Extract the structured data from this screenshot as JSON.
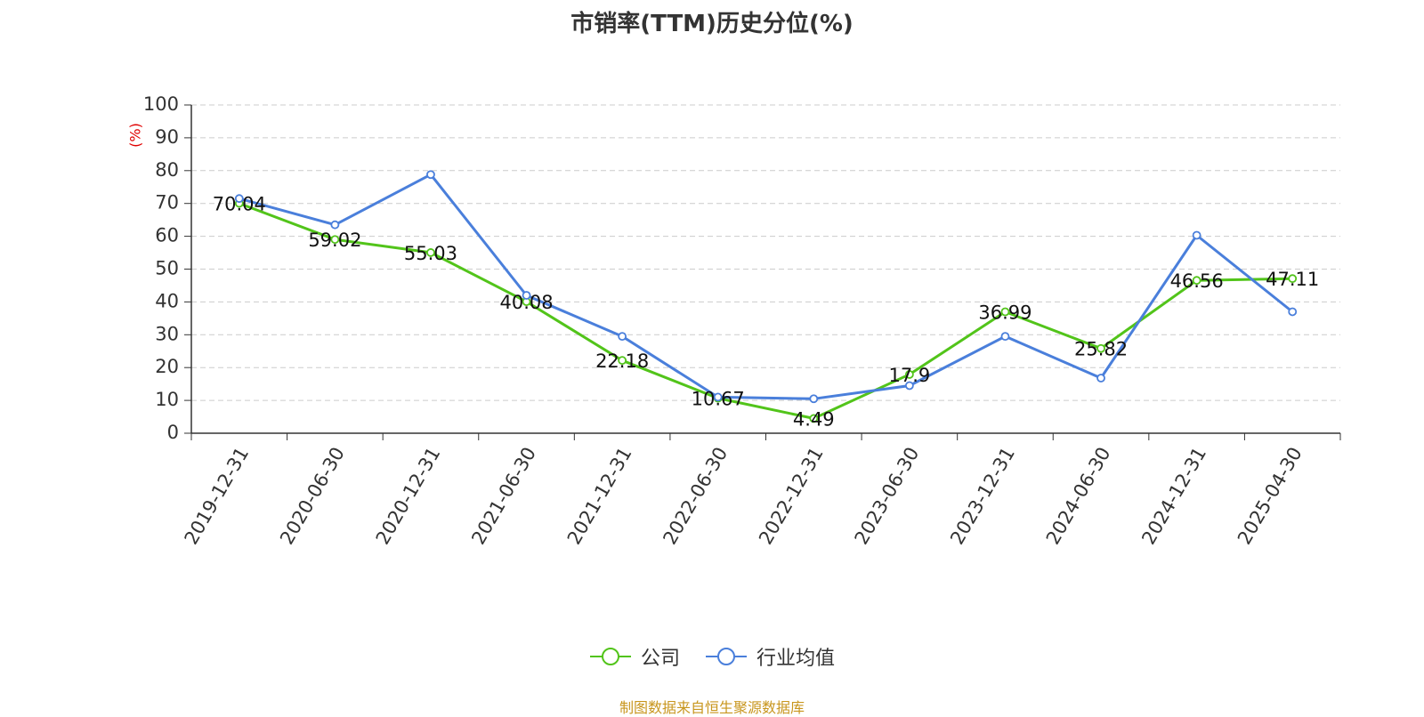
{
  "chart_data": {
    "type": "line",
    "title": "市销率(TTM)历史分位(%)",
    "ylabel": "(%)",
    "xlabel": "",
    "ylim": [
      0,
      100
    ],
    "yticks": [
      0,
      10,
      20,
      30,
      40,
      50,
      60,
      70,
      80,
      90,
      100
    ],
    "categories": [
      "2019-12-31",
      "2020-06-30",
      "2020-12-31",
      "2021-06-30",
      "2021-12-31",
      "2022-06-30",
      "2022-12-31",
      "2023-06-30",
      "2023-12-31",
      "2024-06-30",
      "2024-12-31",
      "2025-04-30"
    ],
    "series": [
      {
        "name": "公司",
        "color": "#52c41a",
        "values": [
          70.04,
          59.02,
          55.03,
          40.08,
          22.18,
          10.67,
          4.49,
          17.9,
          36.99,
          25.82,
          46.56,
          47.11
        ],
        "show_labels": true
      },
      {
        "name": "行业均值",
        "color": "#4a7fdb",
        "values": [
          71.5,
          63.5,
          78.8,
          42.0,
          29.5,
          11.0,
          10.5,
          14.5,
          29.5,
          16.8,
          60.3,
          37.0
        ],
        "show_labels": false
      }
    ],
    "grid": true,
    "legend_position": "bottom-center",
    "source": "制图数据来自恒生聚源数据库"
  }
}
